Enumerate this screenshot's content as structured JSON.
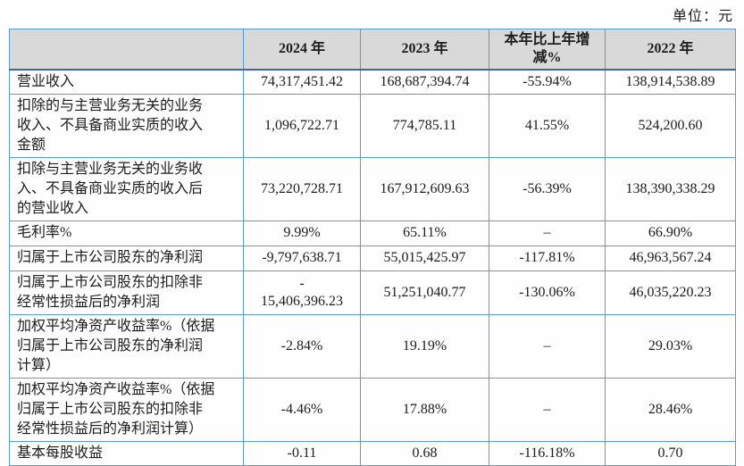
{
  "unit_label": "单位：元",
  "colors": {
    "border": "#5b9bd5",
    "header_underline": "#39699f",
    "header_bg": "#d9d9d9",
    "text": "#1c1c1c"
  },
  "table": {
    "columns": [
      "",
      "2024 年",
      "2023 年",
      "本年比上年增\n减%",
      "2022 年"
    ],
    "rows": [
      {
        "label": "营业收入",
        "values": [
          "74,317,451.42",
          "168,687,394.74",
          "-55.94%",
          "138,914,538.89"
        ]
      },
      {
        "label": "扣除的与主营业务无关的业务\n收入、不具备商业实质的收入\n金额",
        "values": [
          "1,096,722.71",
          "774,785.11",
          "41.55%",
          "524,200.60"
        ]
      },
      {
        "label": "扣除与主营业务无关的业务收\n入、不具备商业实质的收入后\n的营业收入",
        "values": [
          "73,220,728.71",
          "167,912,609.63",
          "-56.39%",
          "138,390,338.29"
        ]
      },
      {
        "label": "毛利率%",
        "values": [
          "9.99%",
          "65.11%",
          "–",
          "66.90%"
        ]
      },
      {
        "label": "归属于上市公司股东的净利润",
        "values": [
          "-9,797,638.71",
          "55,015,425.97",
          "-117.81%",
          "46,963,567.24"
        ]
      },
      {
        "label": "归属于上市公司股东的扣除非\n经常性损益后的净利润",
        "values": [
          "-\n15,406,396.23",
          "51,251,040.77",
          "-130.06%",
          "46,035,220.23"
        ]
      },
      {
        "label": "加权平均净资产收益率%（依据\n归属于上市公司股东的净利润\n计算）",
        "values": [
          "-2.84%",
          "19.19%",
          "–",
          "29.03%"
        ]
      },
      {
        "label": "加权平均净资产收益率%（依据\n归属于上市公司股东的扣除非\n经常性损益后的净利润计算）",
        "values": [
          "-4.46%",
          "17.88%",
          "–",
          "28.46%"
        ]
      },
      {
        "label": "基本每股收益",
        "values": [
          "-0.11",
          "0.68",
          "-116.18%",
          "0.70"
        ]
      }
    ]
  }
}
